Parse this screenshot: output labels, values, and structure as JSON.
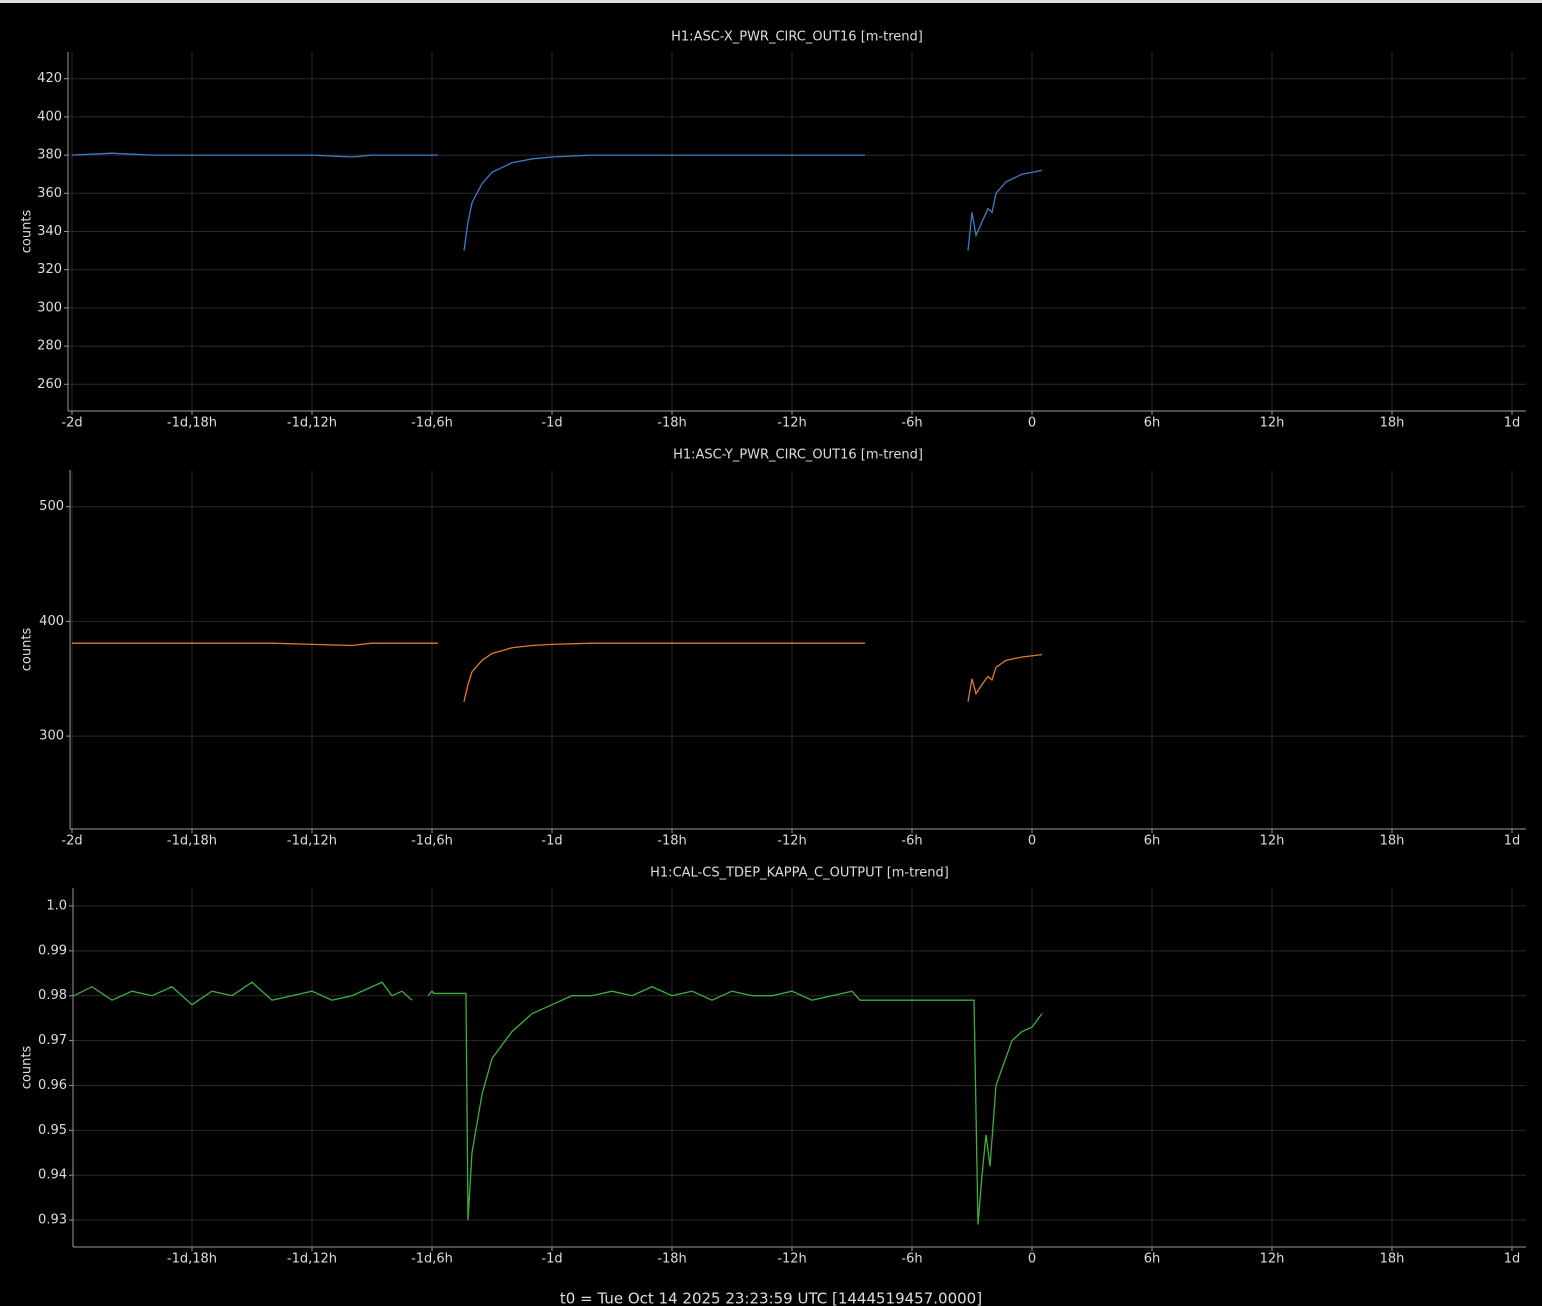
{
  "chart_data": [
    {
      "type": "line",
      "title": "H1:ASC-X_PWR_CIRC_OUT16 [m-trend]",
      "ylabel": "counts",
      "color": "#3a7fc4",
      "grid": true,
      "x": [
        -48,
        -46,
        -44,
        -42,
        -40,
        -38,
        -36,
        -34,
        -33,
        -31,
        -29.7,
        -29,
        -28.4,
        -28.2,
        -28,
        -27.5,
        -27,
        -26,
        -25,
        -24,
        -22,
        -20,
        -18,
        -16,
        -14,
        -12,
        -10,
        -8.35,
        -7,
        -3.2,
        -3.0,
        -2.8,
        -2.5,
        -2.2,
        -2.0,
        -1.8,
        -1.3,
        -0.5,
        0.5
      ],
      "values": [
        380,
        381,
        380,
        380,
        380,
        380,
        380,
        379,
        380,
        380,
        380,
        null,
        330,
        345,
        355,
        365,
        371,
        376,
        378,
        379,
        380,
        380,
        380,
        380,
        380,
        380,
        380,
        380,
        null,
        330,
        350,
        338,
        345,
        352,
        350,
        360,
        366,
        370,
        372
      ],
      "xlim": [
        -48.2,
        24.7
      ],
      "ylim": [
        246,
        434
      ],
      "xticks": [
        {
          "value": -48,
          "label": "-2d"
        },
        {
          "value": -42,
          "label": "-1d,18h"
        },
        {
          "value": -36,
          "label": "-1d,12h"
        },
        {
          "value": -30,
          "label": "-1d,6h"
        },
        {
          "value": -24,
          "label": "-1d"
        },
        {
          "value": -18,
          "label": "-18h"
        },
        {
          "value": -12,
          "label": "-12h"
        },
        {
          "value": -6,
          "label": "-6h"
        },
        0,
        {
          "value": 6,
          "label": "6h"
        },
        {
          "value": 12,
          "label": "12h"
        },
        {
          "value": 18,
          "label": "18h"
        },
        {
          "value": 24,
          "label": "1d"
        }
      ],
      "yticks": [
        260,
        280,
        300,
        320,
        340,
        360,
        380,
        400,
        420
      ]
    },
    {
      "type": "line",
      "title": "H1:ASC-Y_PWR_CIRC_OUT16 [m-trend]",
      "ylabel": "counts",
      "color": "#e07b2a",
      "grid": true,
      "x": [
        -48,
        -46,
        -44,
        -42,
        -40,
        -38,
        -36,
        -34,
        -33,
        -31,
        -29.7,
        -29,
        -28.4,
        -28.2,
        -28,
        -27.5,
        -27,
        -26,
        -25,
        -24,
        -22,
        -20,
        -18,
        -16,
        -14,
        -12,
        -10,
        -8.35,
        -7,
        -3.2,
        -3.0,
        -2.8,
        -2.5,
        -2.2,
        -2.0,
        -1.8,
        -1.3,
        -0.5,
        0.5
      ],
      "values": [
        381,
        381,
        381,
        381,
        381,
        381,
        380,
        379,
        381,
        381,
        381,
        null,
        330,
        345,
        356,
        366,
        372,
        377,
        379,
        380,
        381,
        381,
        381,
        381,
        381,
        381,
        381,
        381,
        null,
        330,
        350,
        337,
        345,
        352,
        349,
        360,
        366,
        369,
        371
      ],
      "xlim": [
        -48.1,
        24.7
      ],
      "ylim": [
        219,
        532
      ],
      "xticks": [
        {
          "value": -48,
          "label": "-2d"
        },
        {
          "value": -42,
          "label": "-1d,18h"
        },
        {
          "value": -36,
          "label": "-1d,12h"
        },
        {
          "value": -30,
          "label": "-1d,6h"
        },
        {
          "value": -24,
          "label": "-1d"
        },
        {
          "value": -18,
          "label": "-18h"
        },
        {
          "value": -12,
          "label": "-12h"
        },
        {
          "value": -6,
          "label": "-6h"
        },
        0,
        {
          "value": 6,
          "label": "6h"
        },
        {
          "value": 12,
          "label": "12h"
        },
        {
          "value": 18,
          "label": "18h"
        },
        {
          "value": 24,
          "label": "1d"
        }
      ],
      "yticks": [
        300,
        400,
        500
      ]
    },
    {
      "type": "line",
      "title": "H1:CAL-CS_TDEP_KAPPA_C_OUTPUT [m-trend]",
      "ylabel": "counts",
      "color": "#3fae3f",
      "grid": true,
      "x": [
        -47.9,
        -47,
        -46,
        -45,
        -44,
        -43,
        -42,
        -41,
        -40,
        -39,
        -38,
        -37,
        -36,
        -35,
        -34,
        -33,
        -32.5,
        -32,
        -31.5,
        -31,
        -30.85,
        -30.2,
        -30.0,
        -29.9,
        -28.3,
        -28.2,
        -28.0,
        -27.5,
        -27,
        -26,
        -25,
        -24,
        -23,
        -22,
        -21,
        -20,
        -19,
        -18,
        -17,
        -16,
        -15,
        -14,
        -13,
        -12,
        -11,
        -10,
        -9,
        -8.6,
        -2.9,
        -2.7,
        -2.5,
        -2.3,
        -2.1,
        -1.8,
        -1.4,
        -1,
        -0.5,
        0,
        0.5
      ],
      "values": [
        0.98,
        0.982,
        0.979,
        0.981,
        0.98,
        0.982,
        0.978,
        0.981,
        0.98,
        0.983,
        0.979,
        0.98,
        0.981,
        0.979,
        0.98,
        0.982,
        0.983,
        0.98,
        0.981,
        0.979,
        null,
        0.98,
        0.981,
        0.9805,
        0.9805,
        0.93,
        0.945,
        0.958,
        0.966,
        0.972,
        0.976,
        0.978,
        0.98,
        0.98,
        0.981,
        0.98,
        0.982,
        0.98,
        0.981,
        0.979,
        0.981,
        0.98,
        0.98,
        0.981,
        0.979,
        0.98,
        0.981,
        0.979,
        0.979,
        0.929,
        0.94,
        0.949,
        0.942,
        0.96,
        0.965,
        0.97,
        0.972,
        0.973,
        0.976
      ],
      "xlim": [
        -47.95,
        24.7
      ],
      "ylim": [
        0.924,
        1.004
      ],
      "xticks": [
        {
          "value": -42,
          "label": "-1d,18h"
        },
        {
          "value": -36,
          "label": "-1d,12h"
        },
        {
          "value": -30,
          "label": "-1d,6h"
        },
        {
          "value": -24,
          "label": "-1d"
        },
        {
          "value": -18,
          "label": "-18h"
        },
        {
          "value": -12,
          "label": "-12h"
        },
        {
          "value": -6,
          "label": "-6h"
        },
        0,
        {
          "value": 6,
          "label": "6h"
        },
        {
          "value": 12,
          "label": "12h"
        },
        {
          "value": 18,
          "label": "18h"
        },
        {
          "value": 24,
          "label": "1d"
        }
      ],
      "yticks": [
        0.93,
        0.94,
        0.95,
        0.96,
        0.97,
        0.98,
        0.99,
        {
          "value": 1,
          "label": "1.0"
        }
      ]
    }
  ],
  "footer": "t0 = Tue Oct 14 2025 23:23:59 UTC [1444519457.0000]"
}
